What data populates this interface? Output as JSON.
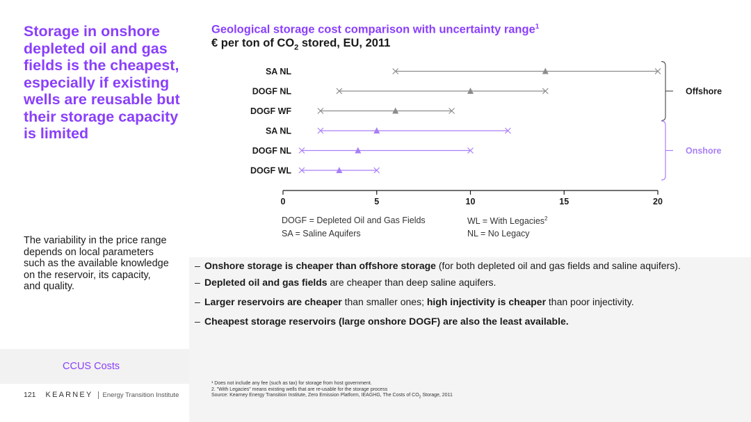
{
  "headline": "Storage in onshore depleted oil and gas fields is the cheapest, especially if existing wells are reusable but their storage capacity is limited",
  "body_note": "The variability in the price range depends on local parameters such as the available knowledge on the reservoir, its capacity, and quality.",
  "section_label": "CCUS Costs",
  "footer": {
    "page_number": "121",
    "brand": "KEARNEY",
    "institute": "Energy Transition Institute"
  },
  "chart_title": {
    "text": "Geological storage cost comparison with uncertainty range",
    "footnote_mark": "1"
  },
  "chart_subtitle": {
    "before": "€ per ton of CO",
    "sub": "2",
    "after": " stored, EU, 2011"
  },
  "chart_data": {
    "type": "range",
    "xlim": [
      0,
      20
    ],
    "xticks": [
      "0",
      "5",
      "10",
      "15",
      "20"
    ],
    "rows": [
      {
        "label": "SA NL",
        "group": "Offshore",
        "min": 6,
        "mid": 14,
        "max": 20
      },
      {
        "label": "DOGF NL",
        "group": "Offshore",
        "min": 3,
        "mid": 10,
        "max": 14
      },
      {
        "label": "DOGF WF",
        "group": "Offshore",
        "min": 2,
        "mid": 6,
        "max": 9
      },
      {
        "label": "SA NL",
        "group": "Onshore",
        "min": 2,
        "mid": 5,
        "max": 12
      },
      {
        "label": "DOGF NL",
        "group": "Onshore",
        "min": 1,
        "mid": 4,
        "max": 10
      },
      {
        "label": "DOGF WL",
        "group": "Onshore",
        "min": 1,
        "mid": 3,
        "max": 5
      }
    ],
    "groups": [
      {
        "name": "Offshore",
        "color": "#1a1a1a"
      },
      {
        "name": "Onshore",
        "color": "#a97ff5"
      }
    ],
    "colors": {
      "Offshore": "#8c8c8c",
      "Onshore": "#a97ff5"
    }
  },
  "legend": {
    "dogf": "DOGF = Depleted Oil and Gas Fields",
    "sa": "SA = Saline Aquifers",
    "wl": "WL = With Legacies",
    "wl_mark": "2",
    "nl": "NL = No Legacy"
  },
  "bullets": [
    [
      {
        "b": "Onshore storage is cheaper than offshore storage"
      },
      {
        "t": " (for both depleted oil and gas fields and saline aquifers)."
      }
    ],
    [
      {
        "b": "Depleted oil and gas fields"
      },
      {
        "t": " are cheaper than deep saline aquifers."
      }
    ],
    [
      {
        "b": "Larger reservoirs are cheaper"
      },
      {
        "t": " than smaller ones; "
      },
      {
        "b": "high injectivity is cheaper"
      },
      {
        "t": " than poor injectivity."
      }
    ],
    [
      {
        "b": "Cheapest storage reservoirs (large onshore DOGF) are also the least available."
      }
    ]
  ],
  "footnotes": {
    "n1": "¹ Does not include any fee (such as tax) for storage from host government.",
    "n2": "2. \"With Legacies\" means existing wells that are re-usable for the storage process",
    "source_before": "Source: Kearney Energy Transition Institute, Zero Emission Platform, IEAGHG, The Costs of CO",
    "source_sub": "2",
    "source_after": " Storage, 2011"
  }
}
